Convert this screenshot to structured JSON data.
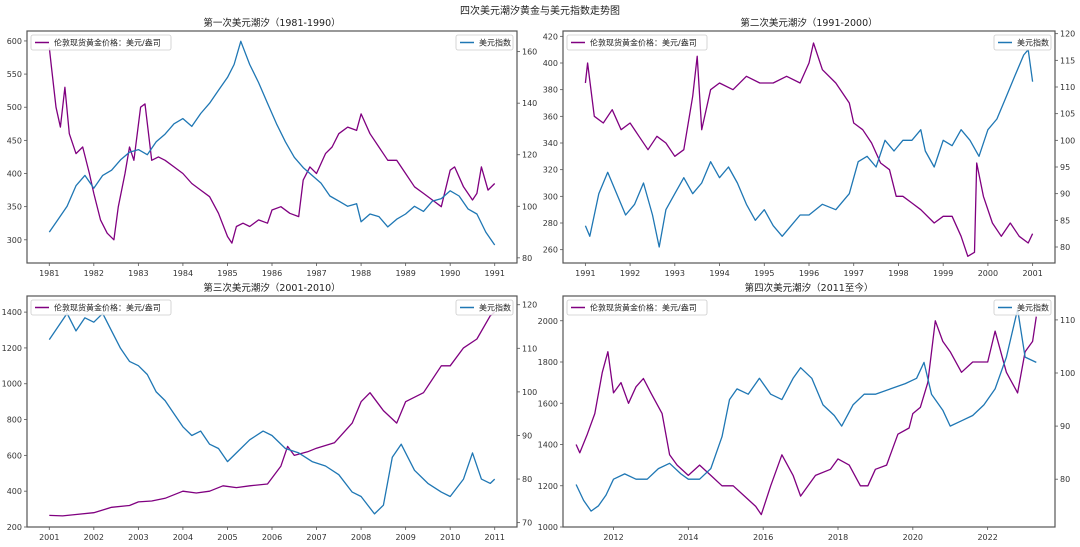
{
  "suptitle": "四次美元潮汐黄金与美元指数走势图",
  "colors": {
    "gold": "#800080",
    "usd": "#1f77b4",
    "axis": "#555555"
  },
  "chart_data": [
    {
      "type": "line",
      "title": "第一次美元潮汐（1981-1990）",
      "xlim": [
        1980.5,
        1991.5
      ],
      "x_ticks": [
        1981,
        1982,
        1983,
        1984,
        1985,
        1986,
        1987,
        1988,
        1989,
        1990,
        1991
      ],
      "ylim_left": [
        265,
        615
      ],
      "y_ticks_left": [
        300,
        350,
        400,
        450,
        500,
        550,
        600
      ],
      "ylim_right": [
        78,
        168
      ],
      "y_ticks_right": [
        80,
        100,
        120,
        140,
        160
      ],
      "legend_left": "伦敦现货黄金价格：美元/盎司",
      "legend_right": "美元指数",
      "series": [
        {
          "name": "伦敦现货黄金价格：美元/盎司",
          "axis": "left",
          "x": [
            1981.0,
            1981.05,
            1981.15,
            1981.25,
            1981.35,
            1981.45,
            1981.6,
            1981.75,
            1981.9,
            1982.0,
            1982.15,
            1982.3,
            1982.45,
            1982.55,
            1982.7,
            1982.8,
            1982.9,
            1983.05,
            1983.15,
            1983.3,
            1983.45,
            1983.6,
            1983.8,
            1984.0,
            1984.2,
            1984.4,
            1984.6,
            1984.8,
            1985.0,
            1985.1,
            1985.2,
            1985.35,
            1985.5,
            1985.7,
            1985.9,
            1986.0,
            1986.2,
            1986.4,
            1986.6,
            1986.7,
            1986.85,
            1987.0,
            1987.2,
            1987.35,
            1987.5,
            1987.7,
            1987.9,
            1988.0,
            1988.2,
            1988.4,
            1988.6,
            1988.8,
            1989.0,
            1989.2,
            1989.4,
            1989.6,
            1989.8,
            1990.0,
            1990.1,
            1990.3,
            1990.5,
            1990.6,
            1990.7,
            1990.85,
            1991.0
          ],
          "y": [
            590,
            560,
            500,
            470,
            530,
            460,
            430,
            440,
            400,
            370,
            330,
            310,
            300,
            350,
            400,
            440,
            420,
            500,
            505,
            420,
            425,
            420,
            410,
            400,
            385,
            375,
            365,
            340,
            305,
            295,
            320,
            325,
            320,
            330,
            325,
            345,
            350,
            340,
            335,
            390,
            410,
            400,
            430,
            440,
            460,
            470,
            465,
            490,
            460,
            440,
            420,
            420,
            400,
            380,
            370,
            360,
            350,
            405,
            410,
            380,
            360,
            370,
            410,
            375,
            385
          ]
        },
        {
          "name": "美元指数",
          "axis": "right",
          "x": [
            1981.0,
            1981.2,
            1981.4,
            1981.6,
            1981.8,
            1982.0,
            1982.2,
            1982.4,
            1982.6,
            1982.8,
            1983.0,
            1983.2,
            1983.4,
            1983.6,
            1983.8,
            1984.0,
            1984.2,
            1984.4,
            1984.6,
            1984.8,
            1985.0,
            1985.15,
            1985.3,
            1985.5,
            1985.7,
            1985.9,
            1986.1,
            1986.3,
            1986.5,
            1986.7,
            1986.9,
            1987.1,
            1987.3,
            1987.5,
            1987.7,
            1987.9,
            1988.0,
            1988.2,
            1988.4,
            1988.6,
            1988.8,
            1989.0,
            1989.2,
            1989.4,
            1989.6,
            1989.8,
            1990.0,
            1990.2,
            1990.4,
            1990.6,
            1990.8,
            1991.0
          ],
          "y": [
            90,
            95,
            100,
            108,
            112,
            107,
            112,
            114,
            118,
            121,
            122,
            120,
            125,
            128,
            132,
            134,
            131,
            136,
            140,
            145,
            150,
            155,
            164,
            155,
            148,
            140,
            132,
            125,
            119,
            115,
            112,
            109,
            104,
            102,
            100,
            101,
            94,
            97,
            96,
            92,
            95,
            97,
            100,
            98,
            102,
            103,
            106,
            104,
            99,
            97,
            90,
            85
          ]
        }
      ]
    },
    {
      "type": "line",
      "title": "第二次美元潮汐（1991-2000）",
      "xlim": [
        1990.5,
        2001.5
      ],
      "x_ticks": [
        1991,
        1992,
        1993,
        1994,
        1995,
        1996,
        1997,
        1998,
        1999,
        2000,
        2001
      ],
      "ylim_left": [
        250,
        424
      ],
      "y_ticks_left": [
        260,
        280,
        300,
        320,
        340,
        360,
        380,
        400,
        420
      ],
      "ylim_right": [
        77,
        120.5
      ],
      "y_ticks_right": [
        80,
        85,
        90,
        95,
        100,
        105,
        110,
        115,
        120
      ],
      "legend_left": "伦敦现货黄金价格：美元/盎司",
      "legend_right": "美元指数",
      "series": [
        {
          "name": "伦敦现货黄金价格：美元/盎司",
          "axis": "left",
          "x": [
            1991.0,
            1991.05,
            1991.2,
            1991.4,
            1991.6,
            1991.8,
            1992.0,
            1992.2,
            1992.4,
            1992.6,
            1992.8,
            1993.0,
            1993.2,
            1993.4,
            1993.5,
            1993.6,
            1993.8,
            1994.0,
            1994.3,
            1994.6,
            1994.9,
            1995.2,
            1995.5,
            1995.8,
            1996.0,
            1996.1,
            1996.3,
            1996.6,
            1996.9,
            1997.0,
            1997.2,
            1997.4,
            1997.6,
            1997.8,
            1997.95,
            1998.1,
            1998.3,
            1998.5,
            1998.8,
            1999.0,
            1999.2,
            1999.4,
            1999.55,
            1999.7,
            1999.75,
            1999.9,
            2000.1,
            2000.3,
            2000.5,
            2000.7,
            2000.9,
            2001.0
          ],
          "y": [
            385,
            400,
            360,
            355,
            365,
            350,
            355,
            345,
            335,
            345,
            340,
            330,
            335,
            375,
            405,
            350,
            380,
            385,
            380,
            390,
            385,
            385,
            390,
            385,
            400,
            415,
            395,
            385,
            370,
            355,
            350,
            340,
            325,
            320,
            300,
            300,
            295,
            290,
            280,
            285,
            285,
            270,
            255,
            258,
            325,
            300,
            280,
            270,
            280,
            270,
            265,
            272
          ]
        },
        {
          "name": "美元指数",
          "axis": "right",
          "x": [
            1991.0,
            1991.1,
            1991.3,
            1991.5,
            1991.7,
            1991.9,
            1992.1,
            1992.3,
            1992.5,
            1992.65,
            1992.8,
            1993.0,
            1993.2,
            1993.4,
            1993.6,
            1993.8,
            1994.0,
            1994.2,
            1994.4,
            1994.6,
            1994.8,
            1995.0,
            1995.2,
            1995.4,
            1995.6,
            1995.8,
            1996.0,
            1996.3,
            1996.6,
            1996.9,
            1997.1,
            1997.3,
            1997.5,
            1997.7,
            1997.9,
            1998.1,
            1998.3,
            1998.5,
            1998.6,
            1998.8,
            1999.0,
            1999.2,
            1999.4,
            1999.6,
            1999.8,
            2000.0,
            2000.2,
            2000.4,
            2000.6,
            2000.8,
            2000.9,
            2001.0
          ],
          "y": [
            84,
            82,
            90,
            94,
            90,
            86,
            88,
            92,
            86,
            80,
            87,
            90,
            93,
            90,
            92,
            96,
            93,
            95,
            92,
            88,
            85,
            87,
            84,
            82,
            84,
            86,
            86,
            88,
            87,
            90,
            96,
            97,
            95,
            100,
            98,
            100,
            100,
            102,
            98,
            95,
            100,
            99,
            102,
            100,
            97,
            102,
            104,
            108,
            112,
            116,
            117,
            111
          ]
        }
      ]
    },
    {
      "type": "line",
      "title": "第三次美元潮汐（2001-2010）",
      "xlim": [
        2000.5,
        2011.5
      ],
      "x_ticks": [
        2001,
        2002,
        2003,
        2004,
        2005,
        2006,
        2007,
        2008,
        2009,
        2010,
        2011
      ],
      "ylim_left": [
        200,
        1490
      ],
      "y_ticks_left": [
        200,
        400,
        600,
        800,
        1000,
        1200,
        1400
      ],
      "ylim_right": [
        69,
        122
      ],
      "y_ticks_right": [
        70,
        80,
        90,
        100,
        110,
        120
      ],
      "legend_left": "伦敦现货黄金价格：美元/盎司",
      "legend_right": "美元指数",
      "series": [
        {
          "name": "伦敦现货黄金价格：美元/盎司",
          "axis": "left",
          "x": [
            2001.0,
            2001.3,
            2001.6,
            2002.0,
            2002.4,
            2002.8,
            2003.0,
            2003.3,
            2003.6,
            2004.0,
            2004.3,
            2004.6,
            2004.9,
            2005.2,
            2005.5,
            2005.9,
            2006.2,
            2006.35,
            2006.5,
            2006.8,
            2007.0,
            2007.4,
            2007.8,
            2008.0,
            2008.2,
            2008.5,
            2008.8,
            2009.0,
            2009.4,
            2009.8,
            2010.0,
            2010.3,
            2010.6,
            2010.9,
            2011.0
          ],
          "y": [
            265,
            262,
            270,
            280,
            310,
            320,
            340,
            345,
            360,
            400,
            390,
            400,
            430,
            420,
            430,
            440,
            540,
            650,
            600,
            620,
            640,
            670,
            780,
            900,
            950,
            850,
            780,
            900,
            950,
            1100,
            1100,
            1200,
            1250,
            1380,
            1400
          ]
        },
        {
          "name": "美元指数",
          "axis": "right",
          "x": [
            2001.0,
            2001.2,
            2001.4,
            2001.6,
            2001.8,
            2002.0,
            2002.2,
            2002.4,
            2002.6,
            2002.8,
            2003.0,
            2003.2,
            2003.4,
            2003.6,
            2003.8,
            2004.0,
            2004.2,
            2004.4,
            2004.6,
            2004.8,
            2005.0,
            2005.2,
            2005.5,
            2005.8,
            2006.0,
            2006.3,
            2006.6,
            2006.9,
            2007.2,
            2007.5,
            2007.8,
            2008.0,
            2008.3,
            2008.5,
            2008.7,
            2008.9,
            2009.2,
            2009.5,
            2009.8,
            2010.0,
            2010.3,
            2010.5,
            2010.7,
            2010.9,
            2011.0
          ],
          "y": [
            112,
            115,
            118,
            114,
            117,
            116,
            118,
            114,
            110,
            107,
            106,
            104,
            100,
            98,
            95,
            92,
            90,
            91,
            88,
            87,
            84,
            86,
            89,
            91,
            90,
            87,
            86,
            84,
            83,
            81,
            77,
            76,
            72,
            74,
            85,
            88,
            82,
            79,
            77,
            76,
            80,
            86,
            80,
            79,
            80
          ]
        }
      ]
    },
    {
      "type": "line",
      "title": "第四次美元潮汐（2011至今）",
      "xlim": [
        2010.65,
        2023.8
      ],
      "x_ticks": [
        2012,
        2014,
        2016,
        2018,
        2020,
        2022
      ],
      "ylim_left": [
        1000,
        2120
      ],
      "y_ticks_left": [
        1000,
        1200,
        1400,
        1600,
        1800,
        2000
      ],
      "ylim_right": [
        71,
        114.5
      ],
      "y_ticks_right": [
        80,
        90,
        100,
        110
      ],
      "legend_left": "伦敦现货黄金价格：美元/盎司",
      "legend_right": "美元指数",
      "series": [
        {
          "name": "伦敦现货黄金价格：美元/盎司",
          "axis": "left",
          "x": [
            2011.0,
            2011.1,
            2011.3,
            2011.5,
            2011.7,
            2011.85,
            2012.0,
            2012.2,
            2012.4,
            2012.6,
            2012.8,
            2013.0,
            2013.3,
            2013.5,
            2013.7,
            2014.0,
            2014.3,
            2014.6,
            2014.9,
            2015.2,
            2015.5,
            2015.8,
            2015.95,
            2016.2,
            2016.5,
            2016.8,
            2017.0,
            2017.4,
            2017.8,
            2018.0,
            2018.3,
            2018.6,
            2018.8,
            2019.0,
            2019.3,
            2019.6,
            2019.9,
            2020.0,
            2020.2,
            2020.4,
            2020.6,
            2020.8,
            2021.0,
            2021.3,
            2021.6,
            2022.0,
            2022.2,
            2022.5,
            2022.8,
            2023.0,
            2023.2,
            2023.3
          ],
          "y": [
            1400,
            1360,
            1450,
            1550,
            1750,
            1850,
            1650,
            1700,
            1600,
            1680,
            1720,
            1650,
            1550,
            1350,
            1300,
            1250,
            1300,
            1250,
            1200,
            1200,
            1150,
            1100,
            1060,
            1200,
            1350,
            1250,
            1150,
            1250,
            1280,
            1330,
            1300,
            1200,
            1200,
            1280,
            1300,
            1450,
            1480,
            1550,
            1580,
            1700,
            2000,
            1900,
            1850,
            1750,
            1800,
            1800,
            1950,
            1750,
            1650,
            1850,
            1900,
            2020
          ]
        },
        {
          "name": "美元指数",
          "axis": "right",
          "x": [
            2011.0,
            2011.2,
            2011.4,
            2011.6,
            2011.8,
            2012.0,
            2012.3,
            2012.6,
            2012.9,
            2013.2,
            2013.5,
            2013.8,
            2014.0,
            2014.3,
            2014.6,
            2014.9,
            2015.1,
            2015.3,
            2015.6,
            2015.9,
            2016.2,
            2016.5,
            2016.8,
            2017.0,
            2017.3,
            2017.6,
            2017.9,
            2018.1,
            2018.4,
            2018.7,
            2019.0,
            2019.4,
            2019.8,
            2020.1,
            2020.3,
            2020.5,
            2020.8,
            2021.0,
            2021.3,
            2021.6,
            2021.9,
            2022.2,
            2022.5,
            2022.8,
            2023.0,
            2023.3
          ],
          "y": [
            79,
            76,
            74,
            75,
            77,
            80,
            81,
            80,
            80,
            82,
            83,
            81,
            80,
            80,
            82,
            88,
            95,
            97,
            96,
            99,
            96,
            95,
            99,
            101,
            99,
            94,
            92,
            90,
            94,
            96,
            96,
            97,
            98,
            99,
            102,
            96,
            93,
            90,
            91,
            92,
            94,
            97,
            103,
            112,
            103,
            102
          ]
        }
      ]
    }
  ]
}
